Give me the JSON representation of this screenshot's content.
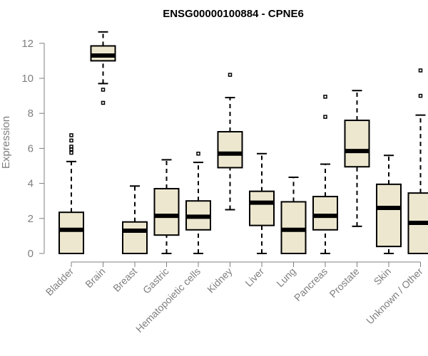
{
  "chart_data": {
    "type": "boxplot",
    "title": "ENSG00000100884 - CPNE6",
    "xlabel": "",
    "ylabel": "Expression",
    "ylim": [
      0,
      12.6
    ],
    "yticks": [
      0,
      2,
      4,
      6,
      8,
      10,
      12
    ],
    "box_color": "#ede7cf",
    "categories": [
      "Bladder",
      "Brain",
      "Breast",
      "Gastric",
      "Hematopoietic cells",
      "Kidney",
      "Liver",
      "Lung",
      "Pancreas",
      "Prostate",
      "Skin",
      "Unknown / Other"
    ],
    "series": [
      {
        "name": "Bladder",
        "min": 0,
        "q1": 0,
        "median": 1.35,
        "q3": 2.35,
        "max": 5.25,
        "outliers": [
          5.75,
          5.95,
          6.1,
          6.45,
          6.75
        ]
      },
      {
        "name": "Brain",
        "min": 9.7,
        "q1": 11.0,
        "median": 11.3,
        "q3": 11.85,
        "max": 12.65,
        "outliers": [
          9.35,
          8.6
        ]
      },
      {
        "name": "Breast",
        "min": 0,
        "q1": 0,
        "median": 1.3,
        "q3": 1.8,
        "max": 3.85,
        "outliers": []
      },
      {
        "name": "Gastric",
        "min": 0,
        "q1": 1.05,
        "median": 2.15,
        "q3": 3.7,
        "max": 5.35,
        "outliers": []
      },
      {
        "name": "Hematopoietic cells",
        "min": 0,
        "q1": 1.35,
        "median": 2.1,
        "q3": 3.0,
        "max": 5.2,
        "outliers": [
          5.7
        ]
      },
      {
        "name": "Kidney",
        "min": 2.5,
        "q1": 4.9,
        "median": 5.7,
        "q3": 6.95,
        "max": 8.9,
        "outliers": [
          10.2
        ]
      },
      {
        "name": "Liver",
        "min": 0,
        "q1": 1.6,
        "median": 2.9,
        "q3": 3.55,
        "max": 5.7,
        "outliers": []
      },
      {
        "name": "Lung",
        "min": 0,
        "q1": 0,
        "median": 1.35,
        "q3": 2.95,
        "max": 4.35,
        "outliers": []
      },
      {
        "name": "Pancreas",
        "min": 0,
        "q1": 1.35,
        "median": 2.15,
        "q3": 3.25,
        "max": 5.1,
        "outliers": [
          7.8,
          8.95
        ]
      },
      {
        "name": "Prostate",
        "min": 1.55,
        "q1": 4.95,
        "median": 5.85,
        "q3": 7.6,
        "max": 9.3,
        "outliers": []
      },
      {
        "name": "Skin",
        "min": 0,
        "q1": 0.4,
        "median": 2.6,
        "q3": 3.95,
        "max": 5.6,
        "outliers": []
      },
      {
        "name": "Unknown / Other",
        "min": 0,
        "q1": 0,
        "median": 1.75,
        "q3": 3.45,
        "max": 7.9,
        "outliers": [
          9.0,
          10.45
        ]
      }
    ]
  }
}
